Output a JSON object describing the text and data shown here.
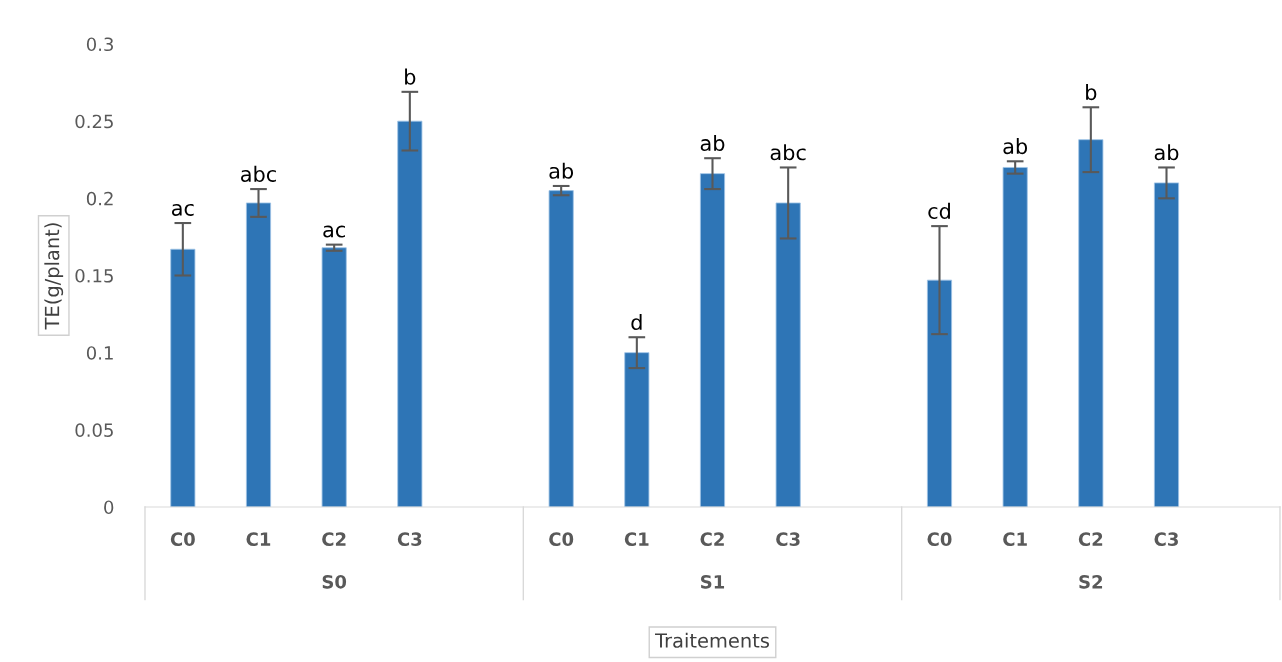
{
  "chart_data": {
    "type": "bar",
    "xlabel": "Traitements",
    "ylabel": "TE(g/plant)",
    "categories": [
      "C0",
      "C1",
      "C2",
      "C3",
      null,
      "C0",
      "C1",
      "C2",
      "C3",
      null,
      "C0",
      "C1",
      "C2",
      "C3",
      null
    ],
    "values": [
      0.167,
      0.197,
      0.168,
      0.25,
      null,
      0.205,
      0.1,
      0.216,
      0.197,
      null,
      0.147,
      0.22,
      0.238,
      0.21,
      null
    ],
    "errors": [
      0.017,
      0.009,
      0.002,
      0.019,
      null,
      0.003,
      0.01,
      0.01,
      0.023,
      null,
      0.035,
      0.004,
      0.021,
      0.01,
      null
    ],
    "value_labels": [
      "ac",
      "abc",
      "ac",
      "b",
      null,
      "ab",
      "d",
      "ab",
      "abc",
      null,
      "cd",
      "ab",
      "b",
      "ab",
      null
    ],
    "annotations": [
      "S0",
      "S1",
      "S2"
    ],
    "color": "#2e75b6",
    "ylim": [
      0,
      0.3
    ],
    "yticks": [
      0,
      0.05,
      0.1,
      0.15,
      0.2,
      0.25,
      0.3
    ],
    "grid": false
  }
}
